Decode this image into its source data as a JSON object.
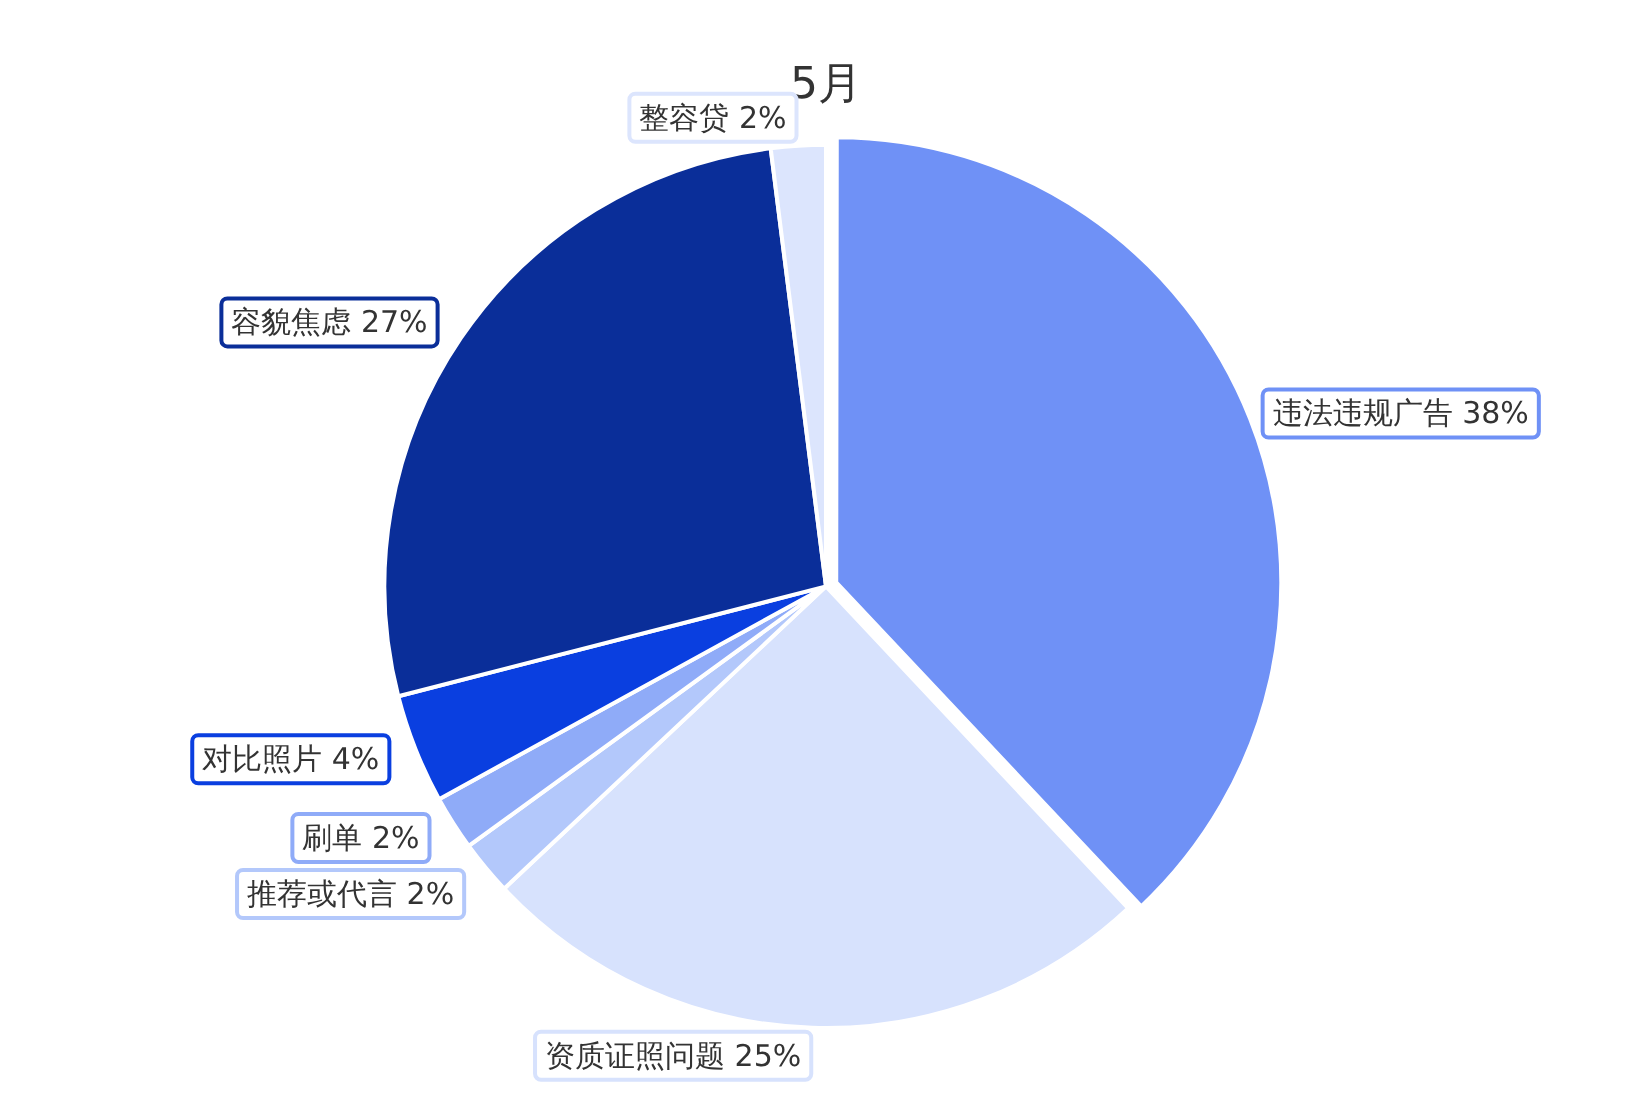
{
  "chart_data": {
    "type": "pie",
    "title": "5月",
    "categories": [
      "违法违规广告",
      "资质证照问题",
      "推荐或代言",
      "刷单",
      "对比照片",
      "容貌焦虑",
      "整容贷"
    ],
    "values": [
      38,
      25,
      2,
      2,
      4,
      27,
      2
    ],
    "value_labels": [
      "38%",
      "25%",
      "2%",
      "2%",
      "4%",
      "27%",
      "2%"
    ],
    "colors": [
      "#6f91f6",
      "#d7e2fd",
      "#b3c8fb",
      "#8fabf8",
      "#0a3fe0",
      "#0a2e99",
      "#dce5fd"
    ],
    "legend": false
  }
}
